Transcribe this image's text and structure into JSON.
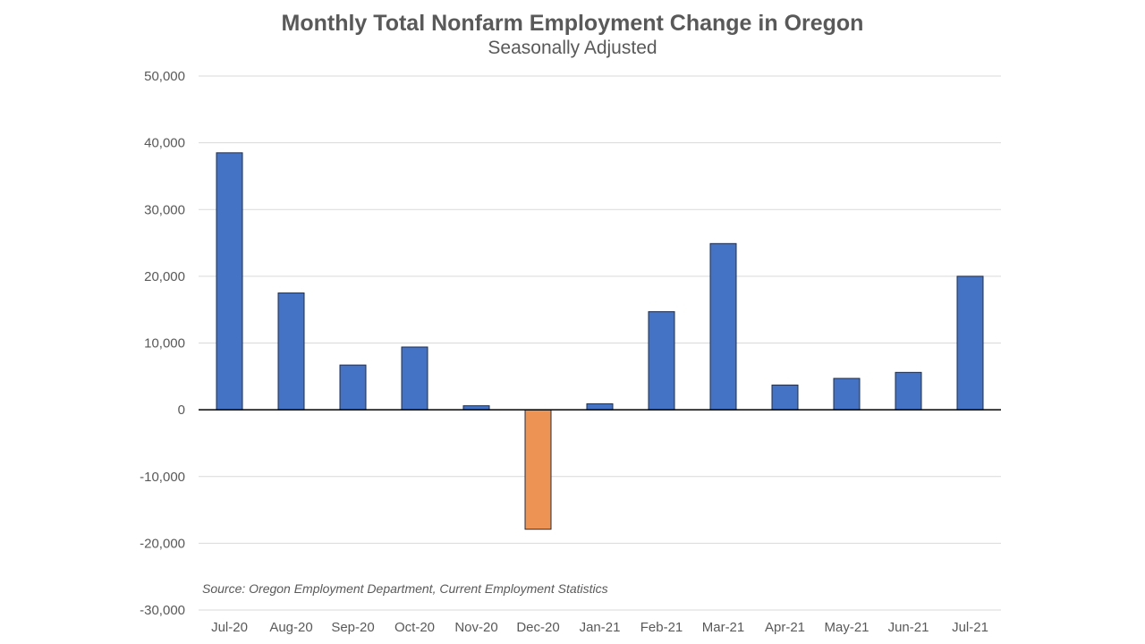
{
  "chart_data": {
    "type": "bar",
    "title": "Monthly Total Nonfarm Employment Change in Oregon",
    "subtitle": "Seasonally Adjusted",
    "xlabel": "",
    "ylabel": "",
    "categories": [
      "Jul-20",
      "Aug-20",
      "Sep-20",
      "Oct-20",
      "Nov-20",
      "Dec-20",
      "Jan-21",
      "Feb-21",
      "Mar-21",
      "Apr-21",
      "May-21",
      "Jun-21",
      "Jul-21"
    ],
    "values": [
      38500,
      17500,
      6700,
      9400,
      600,
      -17900,
      900,
      14700,
      24900,
      3700,
      4700,
      5600,
      20000
    ],
    "ylim": [
      -30000,
      50000
    ],
    "yticks": [
      -30000,
      -20000,
      -10000,
      0,
      10000,
      20000,
      30000,
      40000,
      50000
    ],
    "ytick_labels": [
      "-30,000",
      "-20,000",
      "-10,000",
      "0",
      "10,000",
      "20,000",
      "30,000",
      "40,000",
      "50,000"
    ],
    "grid": true,
    "legend": "none",
    "colors": {
      "positive": "#4472c4",
      "negative": "#ed9455",
      "bar_outline": "#1f2d4d",
      "gridline": "#d9d9d9",
      "axis": "#000000",
      "text": "#595959"
    },
    "annotation": "Source: Oregon Employment Department, Current Employment Statistics"
  }
}
